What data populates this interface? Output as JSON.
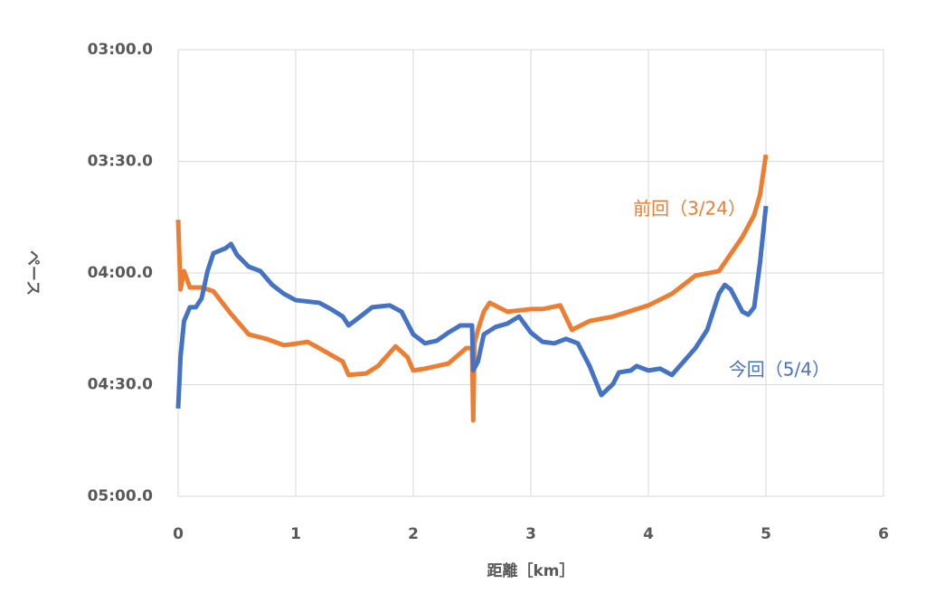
{
  "chart_data": {
    "type": "line",
    "y_inverted": true,
    "x_label": "距離［km］",
    "y_label": "ペース",
    "xlim": [
      0,
      6
    ],
    "xticks": [
      0,
      1,
      2,
      3,
      4,
      5,
      6
    ],
    "ylim": [
      180,
      300
    ],
    "yticks": [
      {
        "value": 180,
        "label": "03:00.0"
      },
      {
        "value": 210,
        "label": "03:30.0"
      },
      {
        "value": 240,
        "label": "04:00.0"
      },
      {
        "value": 270,
        "label": "04:30.0"
      },
      {
        "value": 300,
        "label": "05:00.0"
      }
    ],
    "grid": true,
    "series": [
      {
        "name": "前回（3/24）",
        "color": "#ed7d31",
        "x": [
          0,
          0.02,
          0.05,
          0.1,
          0.2,
          0.3,
          0.45,
          0.6,
          0.75,
          0.9,
          1.0,
          1.1,
          1.2,
          1.3,
          1.4,
          1.45,
          1.6,
          1.7,
          1.85,
          1.95,
          2.0,
          2.1,
          2.3,
          2.45,
          2.5,
          2.51,
          2.52,
          2.55,
          2.6,
          2.65,
          2.8,
          3.0,
          3.1,
          3.25,
          3.35,
          3.5,
          3.7,
          3.9,
          4.0,
          4.2,
          4.4,
          4.6,
          4.8,
          4.9,
          4.95,
          5.0
        ],
        "values": [
          225.7,
          244.4,
          239.5,
          243.9,
          243.9,
          244.9,
          251,
          256.5,
          257.7,
          259.4,
          259,
          258.5,
          260.2,
          262,
          263.8,
          267.4,
          267,
          265,
          259.7,
          262.6,
          266.2,
          265.7,
          264.3,
          260.2,
          260.2,
          279.6,
          258.9,
          255.3,
          250.4,
          248,
          250.4,
          249.7,
          249.7,
          248.7,
          255.3,
          252.9,
          251.7,
          249.7,
          248.7,
          245.6,
          240.7,
          239.5,
          230.3,
          224.4,
          218.9,
          208.2
        ]
      },
      {
        "name": "今回（5/4）",
        "color": "#4472c4",
        "x": [
          0,
          0.02,
          0.05,
          0.1,
          0.15,
          0.2,
          0.25,
          0.3,
          0.4,
          0.45,
          0.5,
          0.6,
          0.7,
          0.8,
          0.9,
          1.0,
          1.2,
          1.3,
          1.4,
          1.45,
          1.55,
          1.65,
          1.8,
          1.9,
          2.0,
          2.1,
          2.2,
          2.3,
          2.4,
          2.5,
          2.51,
          2.55,
          2.6,
          2.7,
          2.8,
          2.9,
          3.0,
          3.1,
          3.2,
          3.3,
          3.4,
          3.5,
          3.6,
          3.7,
          3.75,
          3.85,
          3.9,
          4.0,
          4.1,
          4.2,
          4.3,
          4.4,
          4.5,
          4.6,
          4.65,
          4.7,
          4.8,
          4.85,
          4.9,
          4.95,
          5.0
        ],
        "values": [
          276.4,
          262.6,
          252.9,
          249.2,
          249.2,
          246.8,
          239.5,
          234.7,
          233.4,
          232.2,
          235.1,
          238.3,
          239.5,
          243.2,
          245.6,
          247.3,
          248,
          249.7,
          251.7,
          254.1,
          251.7,
          249.2,
          248.7,
          250.4,
          256.5,
          258.9,
          258.2,
          256,
          254.1,
          254.1,
          266.2,
          263.8,
          256.5,
          254.5,
          253.6,
          251.7,
          256,
          258.5,
          258.9,
          257.7,
          258.9,
          265,
          272.8,
          269.8,
          266.7,
          266.2,
          265,
          266.2,
          265.7,
          267.4,
          263.8,
          260.2,
          255.3,
          245.6,
          243.2,
          244.4,
          250.4,
          251.2,
          249.2,
          237.1,
          222
        ]
      }
    ]
  }
}
